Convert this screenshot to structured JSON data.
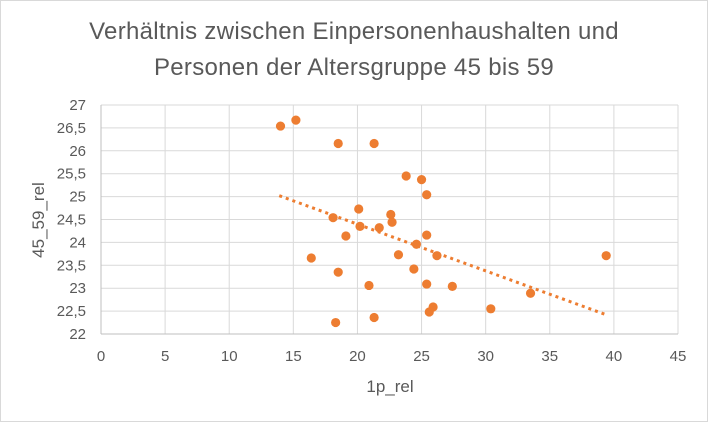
{
  "chart_data": {
    "type": "scatter",
    "title_lines": [
      "Verhältnis zwischen Einpersonenhaushalten und",
      "Personen der Altersgruppe 45 bis 59"
    ],
    "xlabel": "1p_rel",
    "ylabel": "45_59_rel",
    "xlim": [
      0,
      45
    ],
    "ylim": [
      22,
      27
    ],
    "x_ticks": [
      0,
      5,
      10,
      15,
      20,
      25,
      30,
      35,
      40,
      45
    ],
    "x_tick_labels": [
      "0",
      "5",
      "10",
      "15",
      "20",
      "25",
      "30",
      "35",
      "40",
      "45"
    ],
    "y_ticks": [
      22,
      22.5,
      23,
      23.5,
      24,
      24.5,
      25,
      25.5,
      26,
      26.5,
      27
    ],
    "y_tick_labels": [
      "22",
      "22,5",
      "23",
      "23,5",
      "24",
      "24,5",
      "25",
      "25,5",
      "26",
      "26,5",
      "27"
    ],
    "grid": true,
    "marker_color": "#ED7D31",
    "trendline": {
      "type": "linear",
      "style": "dotted",
      "color": "#ED7D31",
      "x_start": 13.9,
      "y_start": 25.02,
      "x_end": 39.4,
      "y_end": 22.42
    },
    "points": [
      {
        "x": 14.0,
        "y": 26.54
      },
      {
        "x": 15.2,
        "y": 26.67
      },
      {
        "x": 18.5,
        "y": 26.16
      },
      {
        "x": 21.3,
        "y": 26.16
      },
      {
        "x": 23.8,
        "y": 25.45
      },
      {
        "x": 25.0,
        "y": 25.37
      },
      {
        "x": 25.4,
        "y": 25.04
      },
      {
        "x": 20.1,
        "y": 24.73
      },
      {
        "x": 18.1,
        "y": 24.54
      },
      {
        "x": 22.6,
        "y": 24.61
      },
      {
        "x": 22.7,
        "y": 24.44
      },
      {
        "x": 20.2,
        "y": 24.35
      },
      {
        "x": 21.7,
        "y": 24.32
      },
      {
        "x": 19.1,
        "y": 24.14
      },
      {
        "x": 25.4,
        "y": 24.16
      },
      {
        "x": 24.6,
        "y": 23.96
      },
      {
        "x": 23.2,
        "y": 23.73
      },
      {
        "x": 26.2,
        "y": 23.71
      },
      {
        "x": 16.4,
        "y": 23.66
      },
      {
        "x": 24.4,
        "y": 23.42
      },
      {
        "x": 18.5,
        "y": 23.35
      },
      {
        "x": 25.4,
        "y": 23.09
      },
      {
        "x": 20.9,
        "y": 23.06
      },
      {
        "x": 27.4,
        "y": 23.04
      },
      {
        "x": 33.5,
        "y": 22.89
      },
      {
        "x": 30.4,
        "y": 22.55
      },
      {
        "x": 25.9,
        "y": 22.59
      },
      {
        "x": 25.6,
        "y": 22.48
      },
      {
        "x": 21.3,
        "y": 22.36
      },
      {
        "x": 18.3,
        "y": 22.25
      },
      {
        "x": 39.4,
        "y": 23.71
      }
    ]
  }
}
